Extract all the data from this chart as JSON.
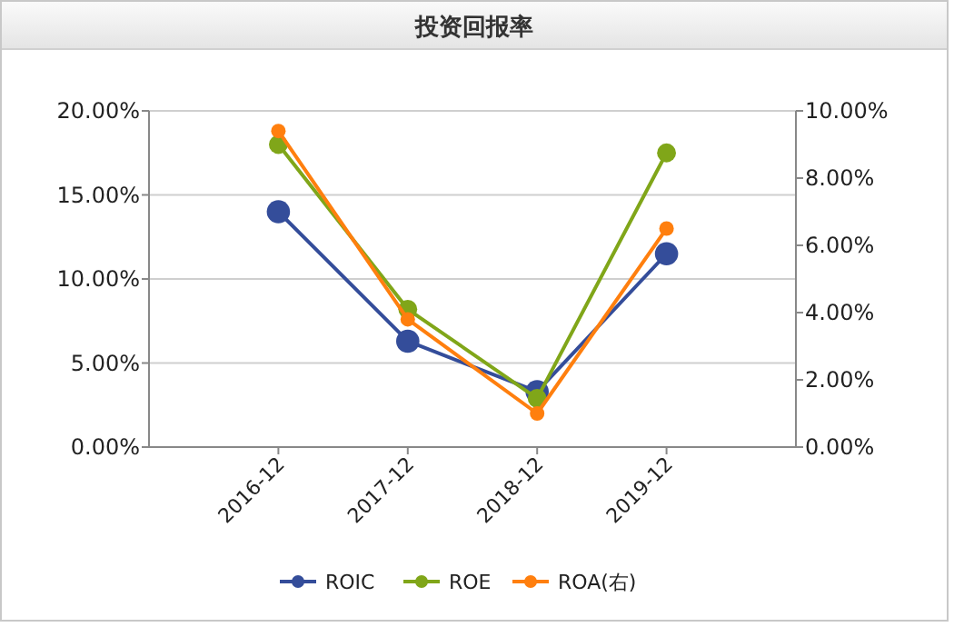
{
  "chart_data": {
    "type": "line",
    "title": "投资回报率",
    "categories": [
      "2016-12",
      "2017-12",
      "2018-12",
      "2019-12"
    ],
    "series": [
      {
        "name": "ROIC",
        "color": "#344d9a",
        "values": [
          14.0,
          6.3,
          3.3,
          11.5
        ]
      },
      {
        "name": "ROE",
        "color": "#80a619",
        "values": [
          18.0,
          8.2,
          2.9,
          17.5
        ]
      },
      {
        "name": "ROA(右)",
        "color": "#ff7f0e",
        "axis": "y2",
        "values": [
          9.4,
          3.8,
          1.0,
          6.5
        ]
      }
    ],
    "ylim": [
      0,
      20
    ],
    "yticks": [
      {
        "value": 0,
        "label": "0.00%"
      },
      {
        "value": 5,
        "label": "5.00%"
      },
      {
        "value": 10,
        "label": "10.00%"
      },
      {
        "value": 15,
        "label": "15.00%"
      },
      {
        "value": 20,
        "label": "20.00%"
      }
    ],
    "y2lim": [
      0,
      10
    ],
    "y2ticks": [
      {
        "value": 0,
        "label": "0.00%"
      },
      {
        "value": 2,
        "label": "2.00%"
      },
      {
        "value": 4,
        "label": "4.00%"
      },
      {
        "value": 6,
        "label": "6.00%"
      },
      {
        "value": 8,
        "label": "8.00%"
      },
      {
        "value": 10,
        "label": "10.00%"
      }
    ],
    "grid": "y",
    "legend": "bottom",
    "marker": "circle",
    "line_style": "solid"
  }
}
